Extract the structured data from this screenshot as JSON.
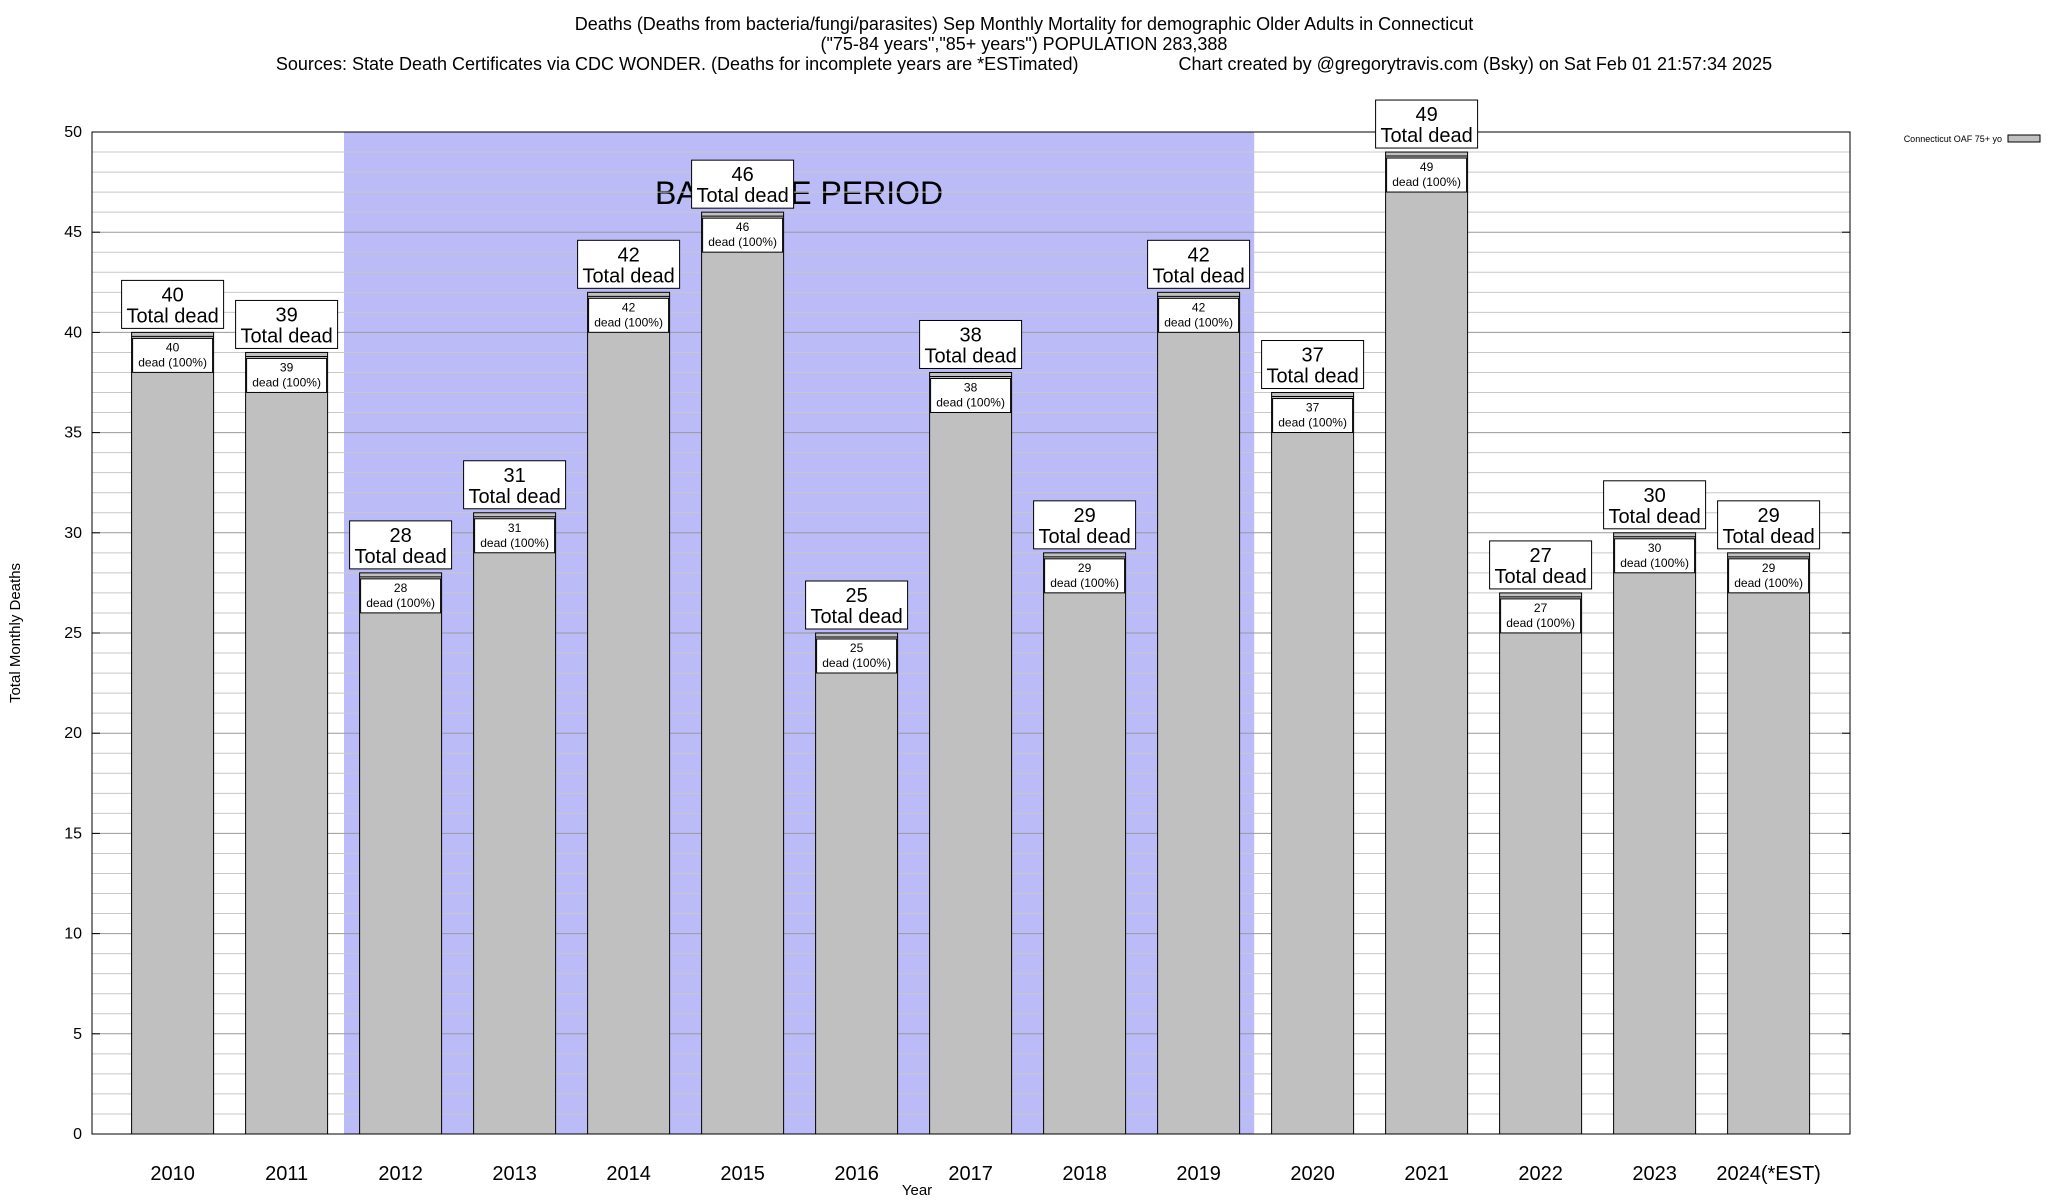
{
  "title": {
    "line1": "Deaths (Deaths from bacteria/fungi/parasites) Sep Monthly Mortality for demographic Older Adults in Connecticut",
    "line2": "(\"75-84 years\",\"85+ years\") POPULATION 283,388",
    "sources": "Sources: State Death Certificates via CDC WONDER. (Deaths for incomplete years are *ESTimated)",
    "credit": "Chart created by @gregorytravis.com (Bsky) on Sat Feb 01 21:57:34 2025"
  },
  "chart_data": {
    "type": "bar",
    "categories": [
      "2010",
      "2011",
      "2012",
      "2013",
      "2014",
      "2015",
      "2016",
      "2017",
      "2018",
      "2019",
      "2020",
      "2021",
      "2022",
      "2023",
      "2024(*EST)"
    ],
    "series": [
      {
        "name": "Connecticut OAF 75+ yo",
        "values": [
          40,
          39,
          28,
          31,
          42,
          46,
          25,
          38,
          29,
          42,
          37,
          49,
          27,
          30,
          29
        ]
      }
    ],
    "top_label_suffix": "Total dead",
    "inner_label_suffix": "dead (100%)",
    "xlabel": "Year",
    "ylabel": "Total Monthly Deaths",
    "ylim": [
      0,
      50
    ],
    "yticks": [
      0,
      5,
      10,
      15,
      20,
      25,
      30,
      35,
      40,
      45,
      50
    ],
    "grid": true,
    "baseline": {
      "label": "BASELINE PERIOD",
      "from": "2012",
      "to": "2019",
      "color": "#bbbbf8"
    },
    "bar_color": "#c0c0c0",
    "legend_position": "top-right"
  }
}
